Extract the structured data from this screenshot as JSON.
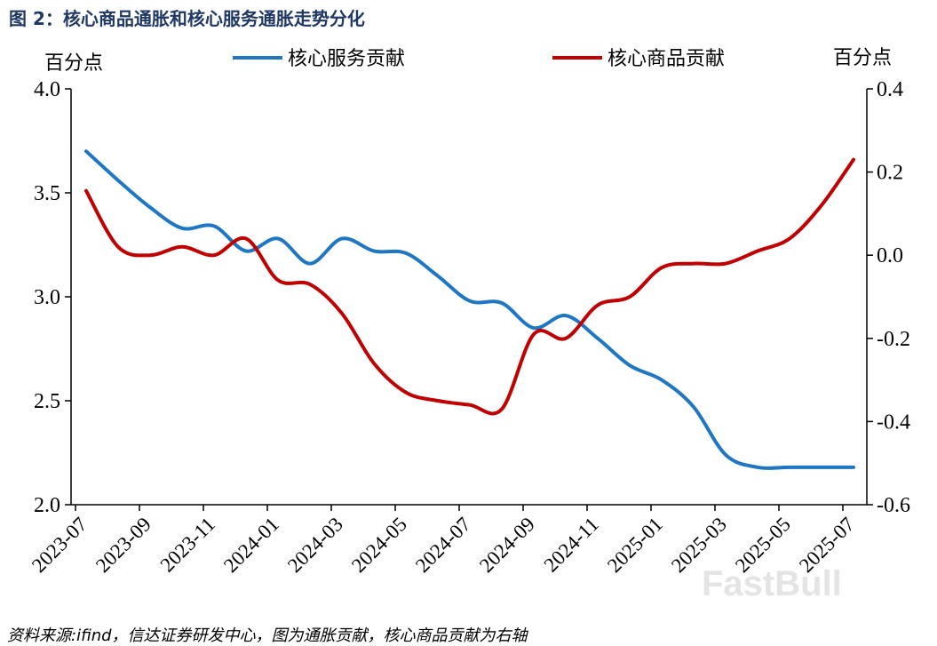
{
  "title": "图 2：核心商品通胀和核心服务通胀走势分化",
  "source_note": "资料来源:ifind，信达证券研发中心，图为通胀贡献，核心商品贡献为右轴",
  "watermark": "FastBull",
  "chart_data": {
    "type": "line",
    "left_axis": {
      "unit_label": "百分点",
      "range": [
        2.0,
        4.0
      ],
      "ticks": [
        "2.0",
        "2.5",
        "3.0",
        "3.5",
        "4.0"
      ]
    },
    "right_axis": {
      "unit_label": "百分点",
      "range": [
        -0.6,
        0.4
      ],
      "ticks": [
        "-0.6",
        "-0.4",
        "-0.2",
        "0.0",
        "0.2",
        "0.4"
      ]
    },
    "x_ticks": [
      "2023-07",
      "2023-09",
      "2023-11",
      "2024-01",
      "2024-03",
      "2024-05",
      "2024-07",
      "2024-09",
      "2024-11",
      "2025-01",
      "2025-03",
      "2025-05",
      "2025-07"
    ],
    "categories": [
      "2023-07",
      "2023-08",
      "2023-09",
      "2023-10",
      "2023-11",
      "2023-12",
      "2024-01",
      "2024-02",
      "2024-03",
      "2024-04",
      "2024-05",
      "2024-06",
      "2024-07",
      "2024-08",
      "2024-09",
      "2024-10",
      "2024-11",
      "2024-12",
      "2025-01",
      "2025-02",
      "2025-03",
      "2025-04",
      "2025-05",
      "2025-06",
      "2025-07"
    ],
    "series": [
      {
        "name": "核心服务贡献",
        "axis": "left",
        "color": "#1f77c4",
        "values": [
          3.7,
          3.56,
          3.43,
          3.33,
          3.34,
          3.22,
          3.28,
          3.16,
          3.28,
          3.22,
          3.21,
          3.1,
          2.98,
          2.97,
          2.85,
          2.91,
          2.8,
          2.67,
          2.6,
          2.47,
          2.24,
          2.18,
          2.18,
          2.18,
          2.18
        ]
      },
      {
        "name": "核心商品贡献",
        "axis": "right",
        "color": "#c00000",
        "values": [
          0.155,
          0.02,
          0.0,
          0.02,
          0.0,
          0.04,
          -0.06,
          -0.07,
          -0.14,
          -0.26,
          -0.33,
          -0.35,
          -0.36,
          -0.37,
          -0.19,
          -0.2,
          -0.12,
          -0.1,
          -0.03,
          -0.02,
          -0.02,
          0.01,
          0.04,
          0.12,
          0.23
        ]
      }
    ]
  }
}
